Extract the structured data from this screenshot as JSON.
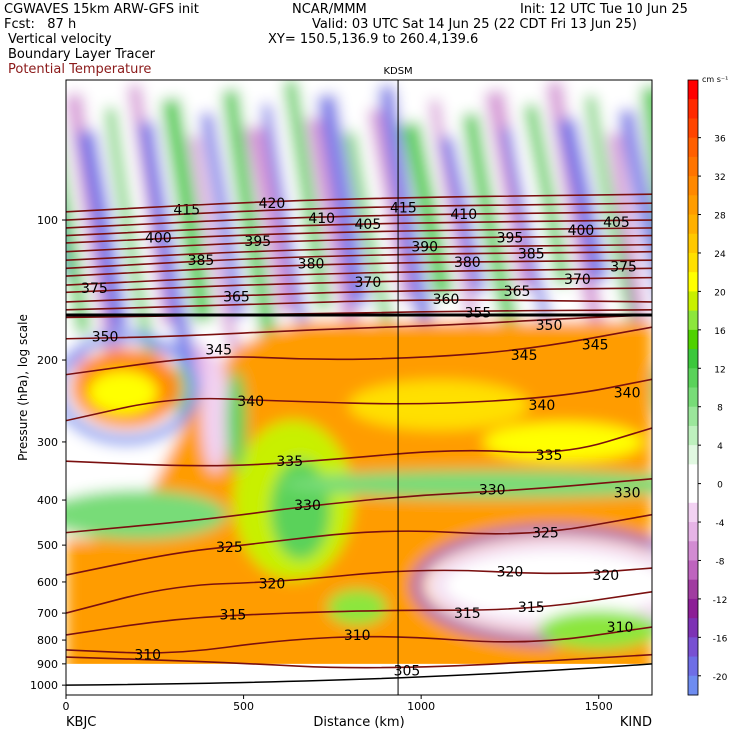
{
  "header": {
    "left_line1": "CGWAVES 15km ARW-GFS init",
    "left_line2": "Fcst:   87 h",
    "center_line1": "NCAR/MMM",
    "right_line1": "Init: 12 UTC Tue 10 Jun 25",
    "right_line2": "Valid: 03 UTC Sat 14 Jun 25 (22 CDT Fri 13 Jun 25)",
    "xy_line": "XY= 150.5,136.9 to 260.4,139.6",
    "field1": "Vertical velocity",
    "field2": "Boundary Layer Tracer",
    "field3": "Potential Temperature"
  },
  "chart_data": {
    "type": "heatmap",
    "title": "",
    "xlabel": "Distance (km)",
    "ylabel": "Pressure (hPa), log scale",
    "xlim": [
      0,
      1650
    ],
    "ylim": [
      1050,
      50
    ],
    "y_scale": "log",
    "x_ticks": [
      0,
      500,
      1000,
      1500
    ],
    "y_ticks": [
      100,
      200,
      300,
      400,
      500,
      600,
      700,
      800,
      900,
      1000
    ],
    "x_endpoint_labels": {
      "left": "KBJC",
      "right": "KIND"
    },
    "marker_label": "KDSM",
    "marker_x": 935,
    "tropopause_pressure": 160,
    "colorbar": {
      "unit": "cm s⁻¹",
      "ticks": [
        36,
        32,
        28,
        24,
        20,
        16,
        12,
        8,
        4,
        0,
        -4,
        -8,
        -12,
        -16,
        -20
      ],
      "bands": [
        {
          "v": 40,
          "c": "#ff0000"
        },
        {
          "v": 38,
          "c": "#ff2a00"
        },
        {
          "v": 36,
          "c": "#ff4500"
        },
        {
          "v": 34,
          "c": "#ff5f00"
        },
        {
          "v": 32,
          "c": "#ff7400"
        },
        {
          "v": 30,
          "c": "#ff8800"
        },
        {
          "v": 28,
          "c": "#ff9c00"
        },
        {
          "v": 26,
          "c": "#ffb000"
        },
        {
          "v": 24,
          "c": "#ffc800"
        },
        {
          "v": 22,
          "c": "#ffe000"
        },
        {
          "v": 20,
          "c": "#ffff00"
        },
        {
          "v": 18,
          "c": "#c8f000"
        },
        {
          "v": 16,
          "c": "#8ce63c"
        },
        {
          "v": 14,
          "c": "#50d200"
        },
        {
          "v": 12,
          "c": "#3cc83c"
        },
        {
          "v": 10,
          "c": "#5ad25a"
        },
        {
          "v": 8,
          "c": "#78dc78"
        },
        {
          "v": 6,
          "c": "#9be69b"
        },
        {
          "v": 4,
          "c": "#bef0be"
        },
        {
          "v": 2,
          "c": "#e1f8e1"
        },
        {
          "v": 0,
          "c": "#ffffff"
        },
        {
          "v": -2,
          "c": "#ffffff"
        },
        {
          "v": -4,
          "c": "#f2d2f2"
        },
        {
          "v": -6,
          "c": "#e6b4e6"
        },
        {
          "v": -8,
          "c": "#d28cd2"
        },
        {
          "v": -10,
          "c": "#be64be"
        },
        {
          "v": -12,
          "c": "#a03ca0"
        },
        {
          "v": -14,
          "c": "#8c1e96"
        },
        {
          "v": -16,
          "c": "#7d32b4"
        },
        {
          "v": -18,
          "c": "#7850d2"
        },
        {
          "v": -20,
          "c": "#6e6ee6"
        },
        {
          "v": -22,
          "c": "#6e8cf0"
        }
      ]
    },
    "theta_contours": [
      {
        "theta": 305,
        "points": [
          [
            0,
            870
          ],
          [
            400,
            890
          ],
          [
            900,
            930
          ],
          [
            1650,
            860
          ]
        ],
        "labels": [
          [
            960,
            930
          ]
        ]
      },
      {
        "theta": 310,
        "points": [
          [
            0,
            840
          ],
          [
            300,
            860
          ],
          [
            600,
            800
          ],
          [
            900,
            780
          ],
          [
            1300,
            820
          ],
          [
            1650,
            750
          ]
        ],
        "labels": [
          [
            230,
            860
          ],
          [
            820,
            780
          ],
          [
            1560,
            750
          ]
        ]
      },
      {
        "theta": 315,
        "points": [
          [
            0,
            780
          ],
          [
            300,
            720
          ],
          [
            600,
            700
          ],
          [
            900,
            690
          ],
          [
            1300,
            690
          ],
          [
            1650,
            630
          ]
        ],
        "labels": [
          [
            470,
            705
          ],
          [
            1130,
            700
          ],
          [
            1310,
            680
          ]
        ]
      },
      {
        "theta": 320,
        "points": [
          [
            0,
            700
          ],
          [
            300,
            610
          ],
          [
            600,
            600
          ],
          [
            1000,
            560
          ],
          [
            1400,
            580
          ],
          [
            1650,
            560
          ]
        ],
        "labels": [
          [
            580,
            605
          ],
          [
            1250,
            570
          ],
          [
            1520,
            580
          ]
        ]
      },
      {
        "theta": 325,
        "points": [
          [
            0,
            580
          ],
          [
            300,
            520
          ],
          [
            500,
            500
          ],
          [
            900,
            460
          ],
          [
            1300,
            480
          ],
          [
            1650,
            430
          ]
        ],
        "labels": [
          [
            460,
            505
          ],
          [
            1350,
            470
          ]
        ]
      },
      {
        "theta": 330,
        "points": [
          [
            0,
            470
          ],
          [
            400,
            440
          ],
          [
            700,
            410
          ],
          [
            1000,
            390
          ],
          [
            1300,
            380
          ],
          [
            1650,
            360
          ]
        ],
        "labels": [
          [
            680,
            410
          ],
          [
            1200,
            380
          ],
          [
            1580,
            385
          ]
        ]
      },
      {
        "theta": 335,
        "points": [
          [
            0,
            330
          ],
          [
            400,
            340
          ],
          [
            700,
            330
          ],
          [
            1100,
            310
          ],
          [
            1400,
            320
          ],
          [
            1650,
            280
          ]
        ],
        "labels": [
          [
            630,
            330
          ],
          [
            1360,
            320
          ]
        ]
      },
      {
        "theta": 340,
        "points": [
          [
            0,
            270
          ],
          [
            300,
            240
          ],
          [
            600,
            245
          ],
          [
            1000,
            250
          ],
          [
            1400,
            240
          ],
          [
            1650,
            220
          ]
        ],
        "labels": [
          [
            520,
            245
          ],
          [
            1340,
            250
          ],
          [
            1580,
            235
          ]
        ]
      },
      {
        "theta": 345,
        "points": [
          [
            0,
            215
          ],
          [
            400,
            195
          ],
          [
            700,
            200
          ],
          [
            1000,
            198
          ],
          [
            1300,
            190
          ],
          [
            1650,
            170
          ]
        ],
        "labels": [
          [
            430,
            190
          ],
          [
            1290,
            195
          ],
          [
            1490,
            185
          ]
        ]
      },
      {
        "theta": 350,
        "points": [
          [
            0,
            180
          ],
          [
            300,
            178
          ],
          [
            700,
            172
          ],
          [
            1100,
            168
          ],
          [
            1400,
            163
          ],
          [
            1650,
            160
          ]
        ],
        "labels": [
          [
            110,
            178
          ],
          [
            1360,
            168
          ]
        ]
      },
      {
        "theta": 355,
        "points": [
          [
            0,
            162
          ],
          [
            500,
            160
          ],
          [
            1100,
            157
          ],
          [
            1650,
            156
          ]
        ],
        "labels": [
          [
            1160,
            158
          ]
        ]
      },
      {
        "theta": 360,
        "points": [
          [
            0,
            156
          ],
          [
            500,
            152
          ],
          [
            1000,
            148
          ],
          [
            1650,
            150
          ]
        ],
        "labels": [
          [
            1070,
            148
          ]
        ]
      },
      {
        "theta": 365,
        "points": [
          [
            0,
            150
          ],
          [
            400,
            146
          ],
          [
            900,
            142
          ],
          [
            1650,
            140
          ]
        ],
        "labels": [
          [
            480,
            146
          ],
          [
            1270,
            142
          ]
        ]
      },
      {
        "theta": 370,
        "points": [
          [
            0,
            143
          ],
          [
            700,
            136
          ],
          [
            1650,
            133
          ]
        ],
        "labels": [
          [
            850,
            136
          ],
          [
            1440,
            134
          ]
        ]
      },
      {
        "theta": 375,
        "points": [
          [
            0,
            138
          ],
          [
            700,
            130
          ],
          [
            1650,
            127
          ]
        ],
        "labels": [
          [
            80,
            140
          ],
          [
            1570,
            126
          ]
        ]
      },
      {
        "theta": 380,
        "points": [
          [
            0,
            132
          ],
          [
            700,
            124
          ],
          [
            1650,
            122
          ]
        ],
        "labels": [
          [
            690,
            124
          ],
          [
            1130,
            123
          ]
        ]
      },
      {
        "theta": 385,
        "points": [
          [
            0,
            127
          ],
          [
            700,
            119
          ],
          [
            1650,
            117
          ]
        ],
        "labels": [
          [
            380,
            122
          ],
          [
            1310,
            118
          ]
        ]
      },
      {
        "theta": 390,
        "points": [
          [
            0,
            122
          ],
          [
            700,
            115
          ],
          [
            1650,
            113
          ]
        ],
        "labels": [
          [
            1010,
            114
          ]
        ]
      },
      {
        "theta": 395,
        "points": [
          [
            0,
            117
          ],
          [
            700,
            110
          ],
          [
            1650,
            108
          ]
        ],
        "labels": [
          [
            540,
            111
          ],
          [
            1250,
            109
          ]
        ]
      },
      {
        "theta": 400,
        "points": [
          [
            0,
            112
          ],
          [
            700,
            106
          ],
          [
            1650,
            104
          ]
        ],
        "labels": [
          [
            260,
            109
          ],
          [
            1450,
            105
          ]
        ]
      },
      {
        "theta": 405,
        "points": [
          [
            0,
            108
          ],
          [
            700,
            102
          ],
          [
            1650,
            100
          ]
        ],
        "labels": [
          [
            850,
            102
          ],
          [
            1550,
            101
          ]
        ]
      },
      {
        "theta": 410,
        "points": [
          [
            0,
            104
          ],
          [
            700,
            98
          ],
          [
            1650,
            96
          ]
        ],
        "labels": [
          [
            720,
            99
          ],
          [
            1120,
            97
          ]
        ]
      },
      {
        "theta": 415,
        "points": [
          [
            0,
            100
          ],
          [
            700,
            94
          ],
          [
            1650,
            92
          ]
        ],
        "labels": [
          [
            340,
            95
          ],
          [
            950,
            94
          ]
        ]
      },
      {
        "theta": 420,
        "points": [
          [
            0,
            96
          ],
          [
            700,
            90
          ],
          [
            1650,
            88
          ]
        ],
        "labels": [
          [
            580,
            92
          ]
        ]
      }
    ]
  }
}
